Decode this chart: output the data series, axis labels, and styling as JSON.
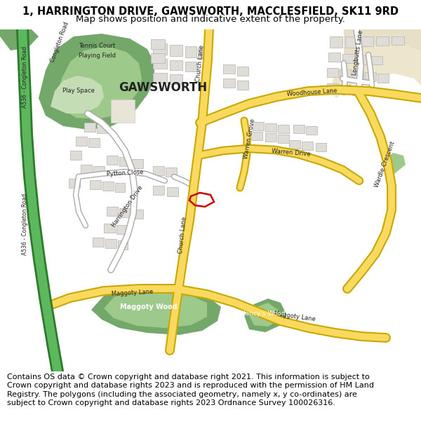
{
  "title": "1, HARRINGTON DRIVE, GAWSWORTH, MACCLESFIELD, SK11 9RD",
  "subtitle": "Map shows position and indicative extent of the property.",
  "copyright": "Contains OS data © Crown copyright and database right 2021. This information is subject to Crown copyright and database rights 2023 and is reproduced with the permission of HM Land Registry. The polygons (including the associated geometry, namely x, y co-ordinates) are subject to Crown copyright and database rights 2023 Ordnance Survey 100026316.",
  "bg_color": "#f2f0eb",
  "road_yellow": "#fada5e",
  "road_yellow_outline": "#c8a800",
  "road_white": "#ffffff",
  "road_grey_outline": "#aaaaaa",
  "green_dark": "#73a86a",
  "green_light": "#c5ddb5",
  "green_medium": "#9dc98a",
  "building_fill": "#e0ddd8",
  "building_outline": "#bbbbbb",
  "plot_color": "#cc0000",
  "a_road_green": "#5db85d",
  "a_road_outline": "#2d7a2d",
  "title_fontsize": 10.5,
  "subtitle_fontsize": 9.5,
  "copyright_fontsize": 8.0
}
